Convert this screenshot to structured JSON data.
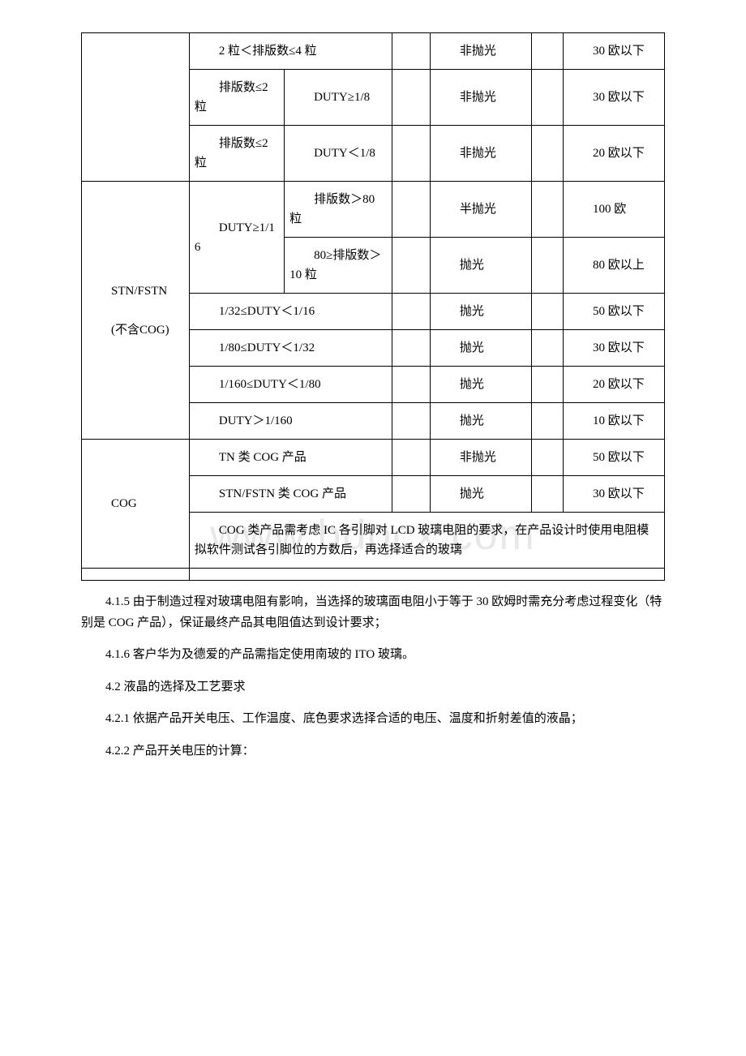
{
  "watermark": "www.bdocx.com",
  "table": {
    "rows": [
      {
        "c1": null,
        "c23": "2 粒＜排版数≤4 粒",
        "c5": "非抛光",
        "c7": "30 欧以下"
      },
      {
        "c1": null,
        "c2": "排版数≤2 粒",
        "c3": "DUTY≥1/8",
        "c5": "非抛光",
        "c7": "30 欧以下"
      },
      {
        "c1": null,
        "c2": "排版数≤2 粒",
        "c3": "DUTY＜1/8",
        "c5": "非抛光",
        "c7": "20 欧以下"
      },
      {
        "c1_group": "STN/FSTN\n(不含COG)",
        "c2_group": "DUTY≥1/16",
        "c3": "排版数＞80 粒",
        "c5": "半抛光",
        "c7": "100 欧"
      },
      {
        "c3": "80≥排版数＞10 粒",
        "c5": "抛光",
        "c7": "80 欧以上"
      },
      {
        "c23": "1/32≤DUTY＜1/16",
        "c5": "抛光",
        "c7": "50 欧以下"
      },
      {
        "c23": "1/80≤DUTY＜1/32",
        "c5": "抛光",
        "c7": "30 欧以下"
      },
      {
        "c23": "1/160≤DUTY＜1/80",
        "c5": "抛光",
        "c7": "20 欧以下"
      },
      {
        "c23": "DUTY＞1/160",
        "c5": "抛光",
        "c7": "10 欧以下"
      },
      {
        "c1_group2": "COG",
        "c23": "TN 类 COG 产品",
        "c5": "非抛光",
        "c7": "50 欧以下"
      },
      {
        "c23": "STN/FSTN 类 COG 产品",
        "c5": "抛光",
        "c7": "30 欧以下"
      },
      {
        "note": "COG 类产品需考虑 IC 各引脚对 LCD 玻璃电阻的要求，在产品设计时使用电阻模拟软件测试各引脚位的方数后，再选择适合的玻璃"
      }
    ]
  },
  "paragraphs": {
    "p1": "4.1.5 由于制造过程对玻璃电阻有影响，当选择的玻璃面电阻小于等于 30 欧姆时需充分考虑过程变化（特别是 COG 产品），保证最终产品其电阻值达到设计要求；",
    "p2": "4.1.6 客户华为及德爱的产品需指定使用南玻的 ITO 玻璃。",
    "p3": "4.2 液晶的选择及工艺要求",
    "p4": "4.2.1 依据产品开关电压、工作温度、底色要求选择合适的电压、温度和折射差值的液晶；",
    "p5": "4.2.2 产品开关电压的计算："
  }
}
